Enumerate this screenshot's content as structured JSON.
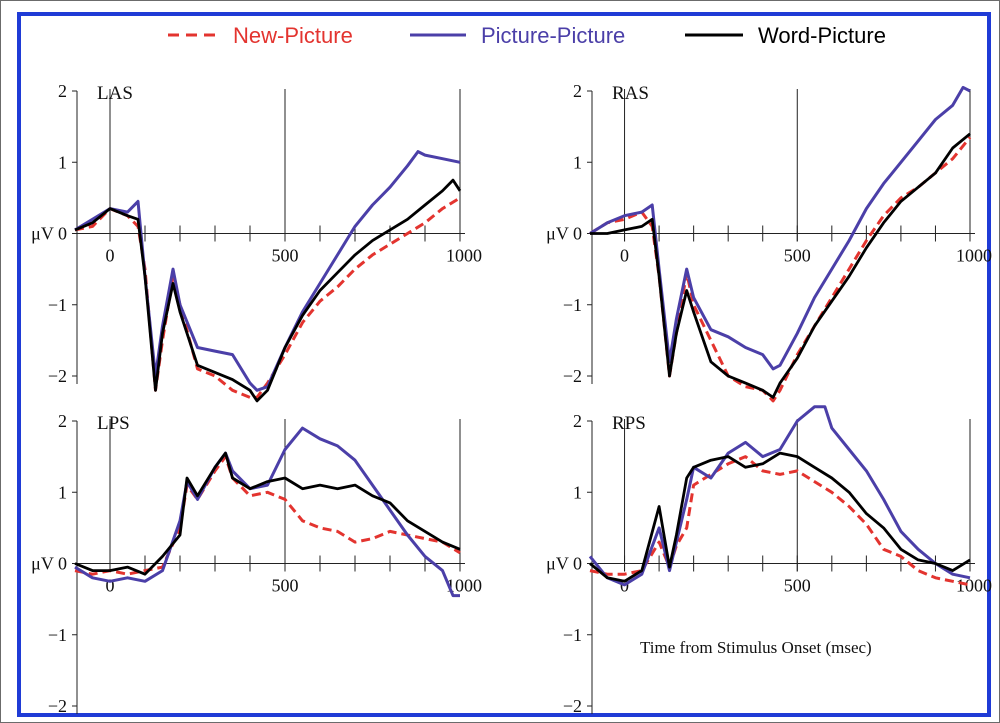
{
  "legend": [
    {
      "name": "New-Picture",
      "color": "#e3342f",
      "dash": true
    },
    {
      "name": "Picture-Picture",
      "color": "#4b3fa8",
      "dash": false
    },
    {
      "name": "Word-Picture",
      "color": "#000000",
      "dash": false
    }
  ],
  "x_axis_label": "Time from Stimulus Onset (msec)",
  "y_unit": "μV",
  "chart_data": [
    {
      "type": "line",
      "title": "LAS",
      "xlim": [
        -100,
        1000
      ],
      "ylim": [
        -2,
        2
      ],
      "xticks": [
        0,
        500,
        1000
      ],
      "yticks": [
        2,
        1,
        0,
        -1,
        -2
      ],
      "series": [
        {
          "name": "New-Picture",
          "x": [
            -100,
            -50,
            0,
            50,
            80,
            100,
            130,
            150,
            180,
            200,
            250,
            300,
            350,
            400,
            420,
            450,
            500,
            550,
            600,
            650,
            700,
            750,
            800,
            850,
            900,
            950,
            1000
          ],
          "y": [
            0.05,
            0.1,
            0.35,
            0.25,
            0.1,
            -0.5,
            -2.2,
            -1.5,
            -0.6,
            -1.0,
            -1.9,
            -2.0,
            -2.2,
            -2.3,
            -2.3,
            -2.1,
            -1.7,
            -1.25,
            -0.95,
            -0.75,
            -0.5,
            -0.3,
            -0.15,
            0.0,
            0.15,
            0.35,
            0.5
          ]
        },
        {
          "name": "Picture-Picture",
          "x": [
            -100,
            -50,
            0,
            50,
            80,
            100,
            130,
            150,
            180,
            200,
            250,
            300,
            350,
            400,
            420,
            450,
            500,
            550,
            600,
            650,
            700,
            750,
            800,
            850,
            880,
            900,
            950,
            1000
          ],
          "y": [
            0.05,
            0.2,
            0.35,
            0.3,
            0.45,
            -0.6,
            -2.0,
            -1.3,
            -0.5,
            -1.0,
            -1.6,
            -1.65,
            -1.7,
            -2.1,
            -2.2,
            -2.15,
            -1.6,
            -1.1,
            -0.7,
            -0.3,
            0.1,
            0.4,
            0.65,
            0.95,
            1.15,
            1.1,
            1.05,
            1.0
          ]
        },
        {
          "name": "Word-Picture",
          "x": [
            -100,
            -50,
            0,
            50,
            80,
            100,
            130,
            150,
            180,
            200,
            250,
            300,
            350,
            400,
            420,
            450,
            500,
            550,
            600,
            650,
            700,
            750,
            800,
            850,
            900,
            950,
            980,
            1000
          ],
          "y": [
            0.05,
            0.15,
            0.35,
            0.25,
            0.2,
            -0.6,
            -2.2,
            -1.4,
            -0.7,
            -1.1,
            -1.85,
            -1.95,
            -2.05,
            -2.2,
            -2.35,
            -2.2,
            -1.6,
            -1.15,
            -0.8,
            -0.55,
            -0.3,
            -0.1,
            0.05,
            0.2,
            0.4,
            0.6,
            0.75,
            0.6
          ]
        }
      ]
    },
    {
      "type": "line",
      "title": "RAS",
      "xlim": [
        -100,
        1000
      ],
      "ylim": [
        -2,
        2
      ],
      "xticks": [
        0,
        500,
        1000
      ],
      "yticks": [
        2,
        1,
        0,
        -1,
        -2
      ],
      "series": [
        {
          "name": "New-Picture",
          "x": [
            -100,
            -50,
            0,
            50,
            80,
            100,
            130,
            150,
            180,
            200,
            250,
            300,
            350,
            400,
            430,
            450,
            500,
            550,
            600,
            650,
            700,
            750,
            800,
            850,
            900,
            950,
            1000
          ],
          "y": [
            0.0,
            0.15,
            0.2,
            0.3,
            0.1,
            -0.6,
            -2.0,
            -1.4,
            -0.55,
            -1.0,
            -1.5,
            -2.0,
            -2.15,
            -2.2,
            -2.35,
            -2.2,
            -1.7,
            -1.3,
            -0.9,
            -0.5,
            -0.1,
            0.25,
            0.5,
            0.65,
            0.85,
            1.05,
            1.35
          ]
        },
        {
          "name": "Picture-Picture",
          "x": [
            -100,
            -50,
            0,
            50,
            80,
            100,
            130,
            150,
            180,
            200,
            250,
            300,
            350,
            400,
            430,
            450,
            500,
            550,
            600,
            650,
            700,
            750,
            800,
            850,
            900,
            950,
            980,
            1000
          ],
          "y": [
            0.0,
            0.15,
            0.25,
            0.3,
            0.4,
            -0.5,
            -1.8,
            -1.2,
            -0.5,
            -0.9,
            -1.35,
            -1.45,
            -1.6,
            -1.7,
            -1.9,
            -1.85,
            -1.4,
            -0.9,
            -0.5,
            -0.1,
            0.35,
            0.7,
            1.0,
            1.3,
            1.6,
            1.8,
            2.05,
            2.0
          ]
        },
        {
          "name": "Word-Picture",
          "x": [
            -100,
            -50,
            0,
            50,
            80,
            100,
            130,
            150,
            180,
            200,
            250,
            300,
            350,
            400,
            430,
            450,
            500,
            550,
            600,
            650,
            700,
            750,
            800,
            850,
            900,
            950,
            1000
          ],
          "y": [
            0.0,
            0.0,
            0.05,
            0.1,
            0.2,
            -0.6,
            -2.0,
            -1.4,
            -0.8,
            -1.1,
            -1.8,
            -2.0,
            -2.1,
            -2.2,
            -2.3,
            -2.1,
            -1.75,
            -1.3,
            -0.95,
            -0.6,
            -0.2,
            0.15,
            0.45,
            0.65,
            0.85,
            1.2,
            1.4
          ]
        }
      ]
    },
    {
      "type": "line",
      "title": "LPS",
      "xlim": [
        -100,
        1000
      ],
      "ylim": [
        -2,
        2
      ],
      "xticks": [
        0,
        500,
        1000
      ],
      "yticks": [
        2,
        1,
        0,
        -1,
        -2
      ],
      "series": [
        {
          "name": "New-Picture",
          "x": [
            -100,
            -50,
            0,
            50,
            100,
            150,
            200,
            220,
            250,
            300,
            330,
            350,
            400,
            450,
            500,
            550,
            600,
            650,
            700,
            750,
            800,
            850,
            900,
            950,
            1000
          ],
          "y": [
            -0.1,
            -0.15,
            -0.1,
            -0.15,
            -0.1,
            -0.05,
            0.5,
            1.1,
            0.9,
            1.3,
            1.5,
            1.2,
            0.95,
            1.0,
            0.9,
            0.6,
            0.5,
            0.45,
            0.3,
            0.35,
            0.45,
            0.4,
            0.35,
            0.3,
            0.15
          ]
        },
        {
          "name": "Picture-Picture",
          "x": [
            -100,
            -50,
            0,
            50,
            100,
            150,
            200,
            220,
            250,
            300,
            330,
            350,
            400,
            450,
            500,
            550,
            600,
            650,
            700,
            750,
            800,
            850,
            900,
            950,
            980,
            1000
          ],
          "y": [
            -0.05,
            -0.2,
            -0.25,
            -0.2,
            -0.25,
            -0.1,
            0.6,
            1.15,
            0.9,
            1.35,
            1.55,
            1.3,
            1.05,
            1.1,
            1.6,
            1.9,
            1.75,
            1.65,
            1.45,
            1.1,
            0.75,
            0.4,
            0.1,
            -0.1,
            -0.45,
            -0.45
          ]
        },
        {
          "name": "Word-Picture",
          "x": [
            -100,
            -50,
            0,
            50,
            100,
            150,
            200,
            220,
            250,
            300,
            330,
            350,
            400,
            450,
            500,
            550,
            600,
            650,
            700,
            750,
            800,
            850,
            900,
            950,
            1000
          ],
          "y": [
            0.0,
            -0.1,
            -0.1,
            -0.05,
            -0.15,
            0.1,
            0.4,
            1.2,
            0.95,
            1.35,
            1.55,
            1.2,
            1.05,
            1.15,
            1.2,
            1.05,
            1.1,
            1.05,
            1.1,
            0.95,
            0.85,
            0.6,
            0.45,
            0.3,
            0.2
          ]
        }
      ]
    },
    {
      "type": "line",
      "title": "RPS",
      "xlim": [
        -100,
        1000
      ],
      "ylim": [
        -2,
        2
      ],
      "xticks": [
        0,
        500,
        1000
      ],
      "yticks": [
        2,
        1,
        0,
        -1,
        -2
      ],
      "xlabel": "Time from Stimulus Onset (msec)",
      "series": [
        {
          "name": "New-Picture",
          "x": [
            -100,
            -50,
            0,
            50,
            100,
            130,
            150,
            180,
            200,
            250,
            300,
            350,
            400,
            450,
            500,
            550,
            600,
            650,
            700,
            750,
            800,
            850,
            900,
            950,
            1000
          ],
          "y": [
            -0.1,
            -0.15,
            -0.15,
            -0.1,
            0.3,
            -0.05,
            0.25,
            0.5,
            1.1,
            1.25,
            1.4,
            1.5,
            1.3,
            1.25,
            1.3,
            1.15,
            1.0,
            0.8,
            0.55,
            0.2,
            0.1,
            -0.1,
            -0.2,
            -0.25,
            -0.3
          ]
        },
        {
          "name": "Picture-Picture",
          "x": [
            -100,
            -50,
            0,
            50,
            100,
            130,
            150,
            180,
            200,
            250,
            300,
            350,
            400,
            450,
            500,
            550,
            580,
            600,
            650,
            700,
            750,
            800,
            850,
            900,
            950,
            1000
          ],
          "y": [
            0.1,
            -0.2,
            -0.3,
            -0.15,
            0.5,
            -0.1,
            0.3,
            0.9,
            1.35,
            1.2,
            1.55,
            1.7,
            1.5,
            1.6,
            2.0,
            2.2,
            2.2,
            1.9,
            1.6,
            1.3,
            0.9,
            0.45,
            0.2,
            0.0,
            -0.15,
            -0.2
          ]
        },
        {
          "name": "Word-Picture",
          "x": [
            -100,
            -50,
            0,
            50,
            100,
            130,
            150,
            180,
            200,
            250,
            300,
            350,
            400,
            450,
            500,
            550,
            600,
            650,
            700,
            750,
            800,
            850,
            900,
            950,
            1000
          ],
          "y": [
            0.0,
            -0.2,
            -0.25,
            -0.1,
            0.8,
            -0.05,
            0.4,
            1.2,
            1.35,
            1.45,
            1.5,
            1.35,
            1.4,
            1.55,
            1.5,
            1.35,
            1.2,
            1.0,
            0.7,
            0.5,
            0.2,
            0.05,
            0.0,
            -0.1,
            0.05
          ]
        }
      ]
    }
  ]
}
